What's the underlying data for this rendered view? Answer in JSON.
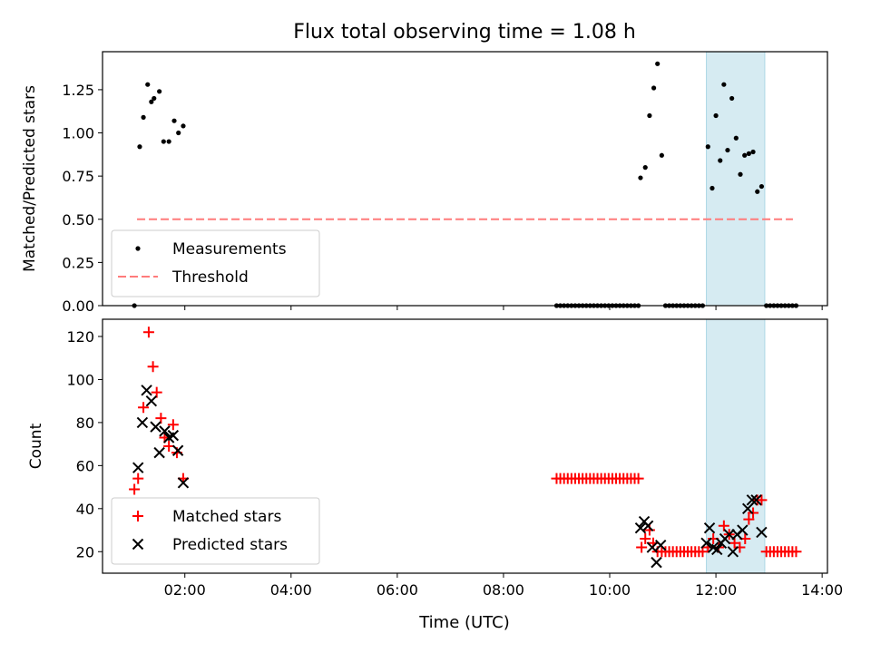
{
  "chart_data": {
    "title": "Flux total observing time = 1.08 h",
    "x_axis": {
      "label": "Time (UTC)",
      "unit": "hours UTC",
      "range": [
        0.45,
        14.1
      ],
      "ticks": [
        2,
        4,
        6,
        8,
        10,
        12,
        14
      ],
      "tick_labels": [
        "02:00",
        "04:00",
        "06:00",
        "08:00",
        "10:00",
        "12:00",
        "14:00"
      ]
    },
    "highlight_interval": [
      11.82,
      12.92
    ],
    "panels": [
      {
        "type": "scatter",
        "ylabel": "Matched/Predicted stars",
        "ylim": [
          0,
          1.47
        ],
        "yticks": [
          0,
          0.25,
          0.5,
          0.75,
          1.0,
          1.25
        ],
        "ytick_labels": [
          "0.00",
          "0.25",
          "0.50",
          "0.75",
          "1.00",
          "1.25"
        ],
        "legend_position": "lower-left",
        "legend": [
          "Measurements",
          "Threshold"
        ],
        "series": [
          {
            "name": "Measurements",
            "marker": "dot",
            "color": "#000000",
            "points": [
              [
                1.05,
                0.0
              ],
              [
                1.15,
                0.92
              ],
              [
                1.22,
                1.09
              ],
              [
                1.3,
                1.28
              ],
              [
                1.37,
                1.18
              ],
              [
                1.42,
                1.2
              ],
              [
                1.52,
                1.24
              ],
              [
                1.6,
                0.95
              ],
              [
                1.7,
                0.95
              ],
              [
                1.8,
                1.07
              ],
              [
                1.88,
                1.0
              ],
              [
                1.97,
                1.04
              ],
              [
                10.58,
                0.74
              ],
              [
                10.67,
                0.8
              ],
              [
                10.75,
                1.1
              ],
              [
                10.83,
                1.26
              ],
              [
                10.9,
                1.4
              ],
              [
                10.98,
                0.87
              ],
              [
                11.85,
                0.92
              ],
              [
                11.93,
                0.68
              ],
              [
                12.0,
                1.1
              ],
              [
                12.08,
                0.84
              ],
              [
                12.15,
                1.28
              ],
              [
                12.22,
                0.9
              ],
              [
                12.3,
                1.2
              ],
              [
                12.38,
                0.97
              ],
              [
                12.46,
                0.76
              ],
              [
                12.54,
                0.87
              ],
              [
                12.62,
                0.88
              ],
              [
                12.7,
                0.89
              ],
              [
                12.78,
                0.66
              ],
              [
                12.86,
                0.69
              ],
              [
                9.0,
                0.0
              ],
              [
                9.07,
                0.0
              ],
              [
                9.14,
                0.0
              ],
              [
                9.21,
                0.0
              ],
              [
                9.28,
                0.0
              ],
              [
                9.35,
                0.0
              ],
              [
                9.42,
                0.0
              ],
              [
                9.49,
                0.0
              ],
              [
                9.56,
                0.0
              ],
              [
                9.63,
                0.0
              ],
              [
                9.7,
                0.0
              ],
              [
                9.77,
                0.0
              ],
              [
                9.84,
                0.0
              ],
              [
                9.91,
                0.0
              ],
              [
                9.98,
                0.0
              ],
              [
                10.05,
                0.0
              ],
              [
                10.12,
                0.0
              ],
              [
                10.19,
                0.0
              ],
              [
                10.26,
                0.0
              ],
              [
                10.33,
                0.0
              ],
              [
                10.4,
                0.0
              ],
              [
                10.47,
                0.0
              ],
              [
                10.54,
                0.0
              ],
              [
                11.05,
                0.0
              ],
              [
                11.12,
                0.0
              ],
              [
                11.19,
                0.0
              ],
              [
                11.26,
                0.0
              ],
              [
                11.33,
                0.0
              ],
              [
                11.4,
                0.0
              ],
              [
                11.47,
                0.0
              ],
              [
                11.54,
                0.0
              ],
              [
                11.61,
                0.0
              ],
              [
                11.68,
                0.0
              ],
              [
                11.75,
                0.0
              ],
              [
                12.95,
                0.0
              ],
              [
                13.02,
                0.0
              ],
              [
                13.09,
                0.0
              ],
              [
                13.16,
                0.0
              ],
              [
                13.23,
                0.0
              ],
              [
                13.3,
                0.0
              ],
              [
                13.37,
                0.0
              ],
              [
                13.44,
                0.0
              ],
              [
                13.51,
                0.0
              ]
            ]
          },
          {
            "name": "Threshold",
            "type": "line",
            "style": "dashed",
            "color": "#ff7b7b",
            "points": [
              [
                1.1,
                0.5
              ],
              [
                13.45,
                0.5
              ]
            ]
          }
        ]
      },
      {
        "type": "scatter",
        "ylabel": "Count",
        "ylim": [
          10,
          128
        ],
        "yticks": [
          20,
          40,
          60,
          80,
          100,
          120
        ],
        "ytick_labels": [
          "20",
          "40",
          "60",
          "80",
          "100",
          "120"
        ],
        "xlabel": "Time (UTC)",
        "legend_position": "lower-left",
        "legend": [
          "Matched stars",
          "Predicted stars"
        ],
        "series": [
          {
            "name": "Matched stars",
            "marker": "plus",
            "color": "#ff0000",
            "points": [
              [
                1.05,
                49
              ],
              [
                1.12,
                54
              ],
              [
                1.22,
                87
              ],
              [
                1.32,
                122
              ],
              [
                1.4,
                106
              ],
              [
                1.47,
                94
              ],
              [
                1.55,
                82
              ],
              [
                1.62,
                73
              ],
              [
                1.7,
                69
              ],
              [
                1.78,
                79
              ],
              [
                1.85,
                66
              ],
              [
                1.97,
                54
              ],
              [
                9.0,
                54
              ],
              [
                9.07,
                54
              ],
              [
                9.14,
                54
              ],
              [
                9.21,
                54
              ],
              [
                9.28,
                54
              ],
              [
                9.35,
                54
              ],
              [
                9.42,
                54
              ],
              [
                9.49,
                54
              ],
              [
                9.56,
                54
              ],
              [
                9.63,
                54
              ],
              [
                9.7,
                54
              ],
              [
                9.77,
                54
              ],
              [
                9.84,
                54
              ],
              [
                9.91,
                54
              ],
              [
                9.98,
                54
              ],
              [
                10.05,
                54
              ],
              [
                10.12,
                54
              ],
              [
                10.19,
                54
              ],
              [
                10.26,
                54
              ],
              [
                10.33,
                54
              ],
              [
                10.4,
                54
              ],
              [
                10.47,
                54
              ],
              [
                10.54,
                54
              ],
              [
                10.6,
                22
              ],
              [
                10.67,
                26
              ],
              [
                10.75,
                30
              ],
              [
                10.82,
                24
              ],
              [
                10.9,
                20
              ],
              [
                10.98,
                20
              ],
              [
                11.05,
                20
              ],
              [
                11.12,
                20
              ],
              [
                11.19,
                20
              ],
              [
                11.26,
                20
              ],
              [
                11.33,
                20
              ],
              [
                11.4,
                20
              ],
              [
                11.47,
                20
              ],
              [
                11.54,
                20
              ],
              [
                11.61,
                20
              ],
              [
                11.68,
                20
              ],
              [
                11.75,
                20
              ],
              [
                11.85,
                22
              ],
              [
                11.95,
                26
              ],
              [
                12.05,
                22
              ],
              [
                12.15,
                32
              ],
              [
                12.25,
                28
              ],
              [
                12.35,
                24
              ],
              [
                12.45,
                22
              ],
              [
                12.55,
                26
              ],
              [
                12.62,
                35
              ],
              [
                12.7,
                38
              ],
              [
                12.78,
                44
              ],
              [
                12.86,
                44
              ],
              [
                12.95,
                20
              ],
              [
                13.02,
                20
              ],
              [
                13.09,
                20
              ],
              [
                13.16,
                20
              ],
              [
                13.23,
                20
              ],
              [
                13.3,
                20
              ],
              [
                13.37,
                20
              ],
              [
                13.44,
                20
              ],
              [
                13.51,
                20
              ]
            ]
          },
          {
            "name": "Predicted stars",
            "marker": "x",
            "color": "#000000",
            "points": [
              [
                1.12,
                59
              ],
              [
                1.2,
                80
              ],
              [
                1.28,
                95
              ],
              [
                1.37,
                90
              ],
              [
                1.45,
                78
              ],
              [
                1.52,
                66
              ],
              [
                1.62,
                76
              ],
              [
                1.7,
                73
              ],
              [
                1.78,
                74
              ],
              [
                1.87,
                67
              ],
              [
                1.97,
                52
              ],
              [
                10.58,
                31
              ],
              [
                10.65,
                34
              ],
              [
                10.72,
                32
              ],
              [
                10.8,
                22
              ],
              [
                10.88,
                15
              ],
              [
                10.96,
                23
              ],
              [
                11.82,
                24
              ],
              [
                11.88,
                31
              ],
              [
                11.95,
                22
              ],
              [
                12.02,
                21
              ],
              [
                12.1,
                24
              ],
              [
                12.17,
                26
              ],
              [
                12.25,
                28
              ],
              [
                12.32,
                20
              ],
              [
                12.4,
                28
              ],
              [
                12.5,
                30
              ],
              [
                12.6,
                40
              ],
              [
                12.68,
                44
              ],
              [
                12.76,
                44
              ],
              [
                12.86,
                29
              ]
            ]
          }
        ]
      }
    ]
  }
}
